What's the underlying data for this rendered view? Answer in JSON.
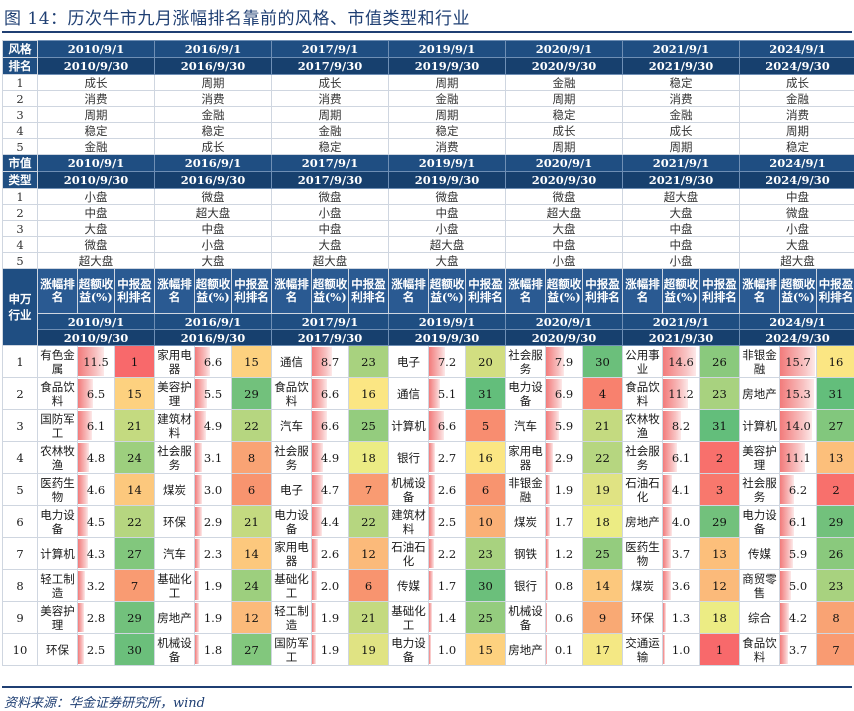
{
  "title": "图 14：历次牛市九月涨幅排名靠前的风格、市值类型和行业",
  "source": "资料来源：华金证券研究所，wind",
  "periods": [
    {
      "start": "2010/9/1",
      "end": "2010/9/30"
    },
    {
      "start": "2016/9/1",
      "end": "2016/9/30"
    },
    {
      "start": "2017/9/1",
      "end": "2017/9/30"
    },
    {
      "start": "2019/9/1",
      "end": "2019/9/30"
    },
    {
      "start": "2020/9/1",
      "end": "2020/9/30"
    },
    {
      "start": "2021/9/1",
      "end": "2021/9/30"
    },
    {
      "start": "2024/9/1",
      "end": "2024/9/30"
    }
  ],
  "style": {
    "corner_top": "风格",
    "corner_bottom": "排名",
    "rows": [
      {
        "rank": "1",
        "cells": [
          "成长",
          "周期",
          "成长",
          "周期",
          "金融",
          "稳定",
          "成长"
        ]
      },
      {
        "rank": "2",
        "cells": [
          "消费",
          "消费",
          "消费",
          "金融",
          "周期",
          "消费",
          "金融"
        ]
      },
      {
        "rank": "3",
        "cells": [
          "周期",
          "金融",
          "周期",
          "周期",
          "稳定",
          "金融",
          "消费"
        ]
      },
      {
        "rank": "4",
        "cells": [
          "稳定",
          "稳定",
          "金融",
          "稳定",
          "成长",
          "成长",
          "周期"
        ]
      },
      {
        "rank": "5",
        "cells": [
          "金融",
          "成长",
          "稳定",
          "消费",
          "周期",
          "周期",
          "稳定"
        ]
      }
    ]
  },
  "cap": {
    "corner_top": "市值",
    "corner_bottom": "类型",
    "rows": [
      {
        "rank": "1",
        "cells": [
          "小盘",
          "微盘",
          "微盘",
          "微盘",
          "微盘",
          "超大盘",
          "中盘"
        ]
      },
      {
        "rank": "2",
        "cells": [
          "中盘",
          "超大盘",
          "小盘",
          "中盘",
          "超大盘",
          "大盘",
          "微盘"
        ]
      },
      {
        "rank": "3",
        "cells": [
          "大盘",
          "中盘",
          "中盘",
          "小盘",
          "大盘",
          "中盘",
          "小盘"
        ]
      },
      {
        "rank": "4",
        "cells": [
          "微盘",
          "小盘",
          "大盘",
          "超大盘",
          "中盘",
          "中盘",
          "大盘"
        ]
      },
      {
        "rank": "5",
        "cells": [
          "超大盘",
          "大盘",
          "超大盘",
          "大盘",
          "小盘",
          "小盘",
          "超大盘"
        ]
      }
    ]
  },
  "industry": {
    "corner": "申万行业",
    "sub_headers": {
      "rank": "涨幅排名",
      "excess": "超额收益(%)",
      "profit": "中报盈利排名"
    },
    "rows": [
      {
        "rank": "1",
        "cells": [
          {
            "name": "有色金属",
            "excess": 11.5,
            "profit": "1",
            "color": "#f8696b"
          },
          {
            "name": "家用电器",
            "excess": 6.6,
            "profit": "15",
            "color": "#fdd17f"
          },
          {
            "name": "通信",
            "excess": 8.7,
            "profit": "23",
            "color": "#a8d27f"
          },
          {
            "name": "电子",
            "excess": 7.2,
            "profit": "20",
            "color": "#d2de81"
          },
          {
            "name": "社会服务",
            "excess": 7.9,
            "profit": "30",
            "color": "#6bbf7b"
          },
          {
            "name": "公用事业",
            "excess": 14.6,
            "profit": "26",
            "color": "#8ac97d"
          },
          {
            "name": "非银金融",
            "excess": 15.7,
            "profit": "16",
            "color": "#fbe683"
          }
        ]
      },
      {
        "rank": "2",
        "cells": [
          {
            "name": "食品饮料",
            "excess": 6.5,
            "profit": "15",
            "color": "#fdd17f"
          },
          {
            "name": "美容护理",
            "excess": 5.5,
            "profit": "29",
            "color": "#72c17c"
          },
          {
            "name": "食品饮料",
            "excess": 6.6,
            "profit": "16",
            "color": "#fbe683"
          },
          {
            "name": "通信",
            "excess": 5.1,
            "profit": "31",
            "color": "#63be7b"
          },
          {
            "name": "电力设备",
            "excess": 6.9,
            "profit": "4",
            "color": "#f8816e"
          },
          {
            "name": "食品饮料",
            "excess": 11.2,
            "profit": "23",
            "color": "#a8d27f"
          },
          {
            "name": "房地产",
            "excess": 15.3,
            "profit": "31",
            "color": "#63be7b"
          }
        ]
      },
      {
        "rank": "3",
        "cells": [
          {
            "name": "国防军工",
            "excess": 6.1,
            "profit": "21",
            "color": "#c4da80"
          },
          {
            "name": "建筑材料",
            "excess": 4.9,
            "profit": "22",
            "color": "#b6d680"
          },
          {
            "name": "汽车",
            "excess": 6.6,
            "profit": "25",
            "color": "#94cc7e"
          },
          {
            "name": "计算机",
            "excess": 6.6,
            "profit": "5",
            "color": "#f88d70"
          },
          {
            "name": "汽车",
            "excess": 5.9,
            "profit": "21",
            "color": "#c4da80"
          },
          {
            "name": "农林牧渔",
            "excess": 8.2,
            "profit": "31",
            "color": "#63be7b"
          },
          {
            "name": "计算机",
            "excess": 14.0,
            "profit": "27",
            "color": "#82c77d"
          }
        ]
      },
      {
        "rank": "4",
        "cells": [
          {
            "name": "农林牧渔",
            "excess": 4.8,
            "profit": "24",
            "color": "#9dcf7e"
          },
          {
            "name": "社会服务",
            "excess": 3.1,
            "profit": "8",
            "color": "#f9a374"
          },
          {
            "name": "社会服务",
            "excess": 4.9,
            "profit": "18",
            "color": "#ecec84"
          },
          {
            "name": "银行",
            "excess": 2.7,
            "profit": "16",
            "color": "#fbe683"
          },
          {
            "name": "家用电器",
            "excess": 2.9,
            "profit": "22",
            "color": "#b6d680"
          },
          {
            "name": "社会服务",
            "excess": 6.1,
            "profit": "2",
            "color": "#f8706c"
          },
          {
            "name": "美容护理",
            "excess": 11.1,
            "profit": "13",
            "color": "#fcbf7b"
          }
        ]
      },
      {
        "rank": "5",
        "cells": [
          {
            "name": "医药生物",
            "excess": 4.6,
            "profit": "14",
            "color": "#fcc87d"
          },
          {
            "name": "煤炭",
            "excess": 3.0,
            "profit": "6",
            "color": "#f8946f"
          },
          {
            "name": "电子",
            "excess": 4.7,
            "profit": "7",
            "color": "#f99b72"
          },
          {
            "name": "机械设备",
            "excess": 2.6,
            "profit": "6",
            "color": "#f8946f"
          },
          {
            "name": "非银金融",
            "excess": 1.9,
            "profit": "19",
            "color": "#e0e383"
          },
          {
            "name": "石油石化",
            "excess": 4.1,
            "profit": "3",
            "color": "#f8786d"
          },
          {
            "name": "社会服务",
            "excess": 6.2,
            "profit": "2",
            "color": "#f8706c"
          }
        ]
      },
      {
        "rank": "6",
        "cells": [
          {
            "name": "电力设备",
            "excess": 4.5,
            "profit": "22",
            "color": "#b6d680"
          },
          {
            "name": "环保",
            "excess": 2.9,
            "profit": "21",
            "color": "#c4da80"
          },
          {
            "name": "电力设备",
            "excess": 4.4,
            "profit": "22",
            "color": "#b6d680"
          },
          {
            "name": "建筑材料",
            "excess": 2.5,
            "profit": "10",
            "color": "#fab076"
          },
          {
            "name": "煤炭",
            "excess": 1.7,
            "profit": "18",
            "color": "#ecec84"
          },
          {
            "name": "房地产",
            "excess": 4.0,
            "profit": "29",
            "color": "#72c17c"
          },
          {
            "name": "电力设备",
            "excess": 6.1,
            "profit": "29",
            "color": "#72c17c"
          }
        ]
      },
      {
        "rank": "7",
        "cells": [
          {
            "name": "计算机",
            "excess": 4.3,
            "profit": "27",
            "color": "#82c77d"
          },
          {
            "name": "汽车",
            "excess": 2.3,
            "profit": "14",
            "color": "#fcc87d"
          },
          {
            "name": "家用电器",
            "excess": 2.6,
            "profit": "12",
            "color": "#fbba7a"
          },
          {
            "name": "石油石化",
            "excess": 2.2,
            "profit": "23",
            "color": "#a8d27f"
          },
          {
            "name": "钢铁",
            "excess": 1.2,
            "profit": "25",
            "color": "#94cc7e"
          },
          {
            "name": "医药生物",
            "excess": 3.7,
            "profit": "13",
            "color": "#fcbf7b"
          },
          {
            "name": "传媒",
            "excess": 5.9,
            "profit": "26",
            "color": "#8ac97d"
          }
        ]
      },
      {
        "rank": "8",
        "cells": [
          {
            "name": "轻工制造",
            "excess": 3.2,
            "profit": "7",
            "color": "#f99b72"
          },
          {
            "name": "基础化工",
            "excess": 1.9,
            "profit": "24",
            "color": "#9dcf7e"
          },
          {
            "name": "基础化工",
            "excess": 2.0,
            "profit": "6",
            "color": "#f8946f"
          },
          {
            "name": "传媒",
            "excess": 1.7,
            "profit": "30",
            "color": "#6bbf7b"
          },
          {
            "name": "银行",
            "excess": 0.8,
            "profit": "14",
            "color": "#fcc87d"
          },
          {
            "name": "煤炭",
            "excess": 3.6,
            "profit": "12",
            "color": "#fbba7a"
          },
          {
            "name": "商贸零售",
            "excess": 5.0,
            "profit": "23",
            "color": "#a8d27f"
          }
        ]
      },
      {
        "rank": "9",
        "cells": [
          {
            "name": "美容护理",
            "excess": 2.8,
            "profit": "29",
            "color": "#72c17c"
          },
          {
            "name": "房地产",
            "excess": 1.9,
            "profit": "12",
            "color": "#fbba7a"
          },
          {
            "name": "轻工制造",
            "excess": 1.9,
            "profit": "21",
            "color": "#c4da80"
          },
          {
            "name": "基础化工",
            "excess": 1.4,
            "profit": "25",
            "color": "#94cc7e"
          },
          {
            "name": "机械设备",
            "excess": 0.6,
            "profit": "9",
            "color": "#f9a974"
          },
          {
            "name": "环保",
            "excess": 1.3,
            "profit": "18",
            "color": "#ecec84"
          },
          {
            "name": "综合",
            "excess": 4.2,
            "profit": "8",
            "color": "#f9a374"
          }
        ]
      },
      {
        "rank": "10",
        "cells": [
          {
            "name": "环保",
            "excess": 2.5,
            "profit": "30",
            "color": "#6bbf7b"
          },
          {
            "name": "机械设备",
            "excess": 1.8,
            "profit": "27",
            "color": "#82c77d"
          },
          {
            "name": "国防军工",
            "excess": 1.9,
            "profit": "19",
            "color": "#e0e383"
          },
          {
            "name": "电力设备",
            "excess": 1.0,
            "profit": "15",
            "color": "#fdd17f"
          },
          {
            "name": "房地产",
            "excess": 0.1,
            "profit": "17",
            "color": "#f4e884"
          },
          {
            "name": "交通运输",
            "excess": 1.0,
            "profit": "1",
            "color": "#f8696b"
          },
          {
            "name": "食品饮料",
            "excess": 3.7,
            "profit": "7",
            "color": "#f99b72"
          }
        ]
      }
    ]
  }
}
